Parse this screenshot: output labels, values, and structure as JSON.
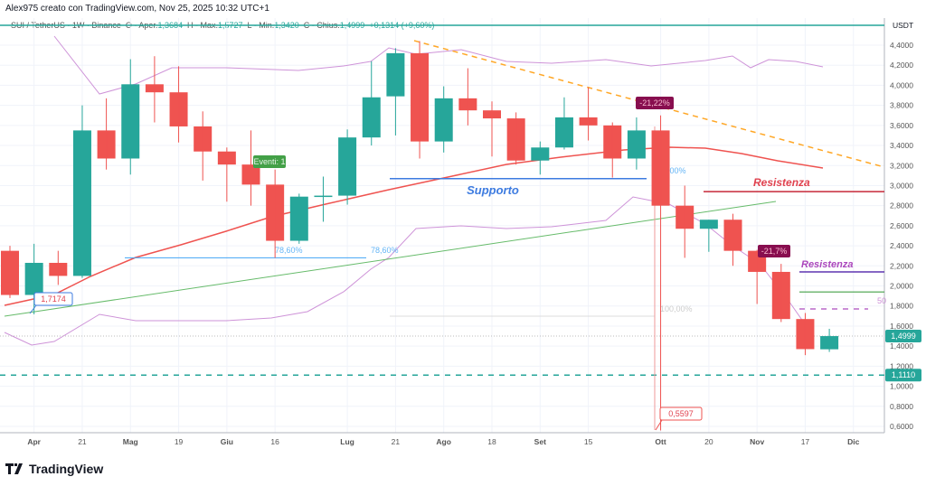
{
  "credit": "Alex975 creato con TradingView.com, Nov 25, 2025 10:32 UTC+1",
  "legend": {
    "symbol": "SUI / TetherUS · 1W · Binance",
    "o_label": "O - Aper.",
    "o": "1,3684",
    "h_label": "H - Max.",
    "h": "1,5727",
    "l_label": "L - Min.",
    "l": "1,3420",
    "c_label": "C - Chius.",
    "c": "1,4999",
    "chg": "+0,1314 (+9,60%)"
  },
  "logo": "TradingView",
  "colors": {
    "up": "#26a69a",
    "down": "#ef5350",
    "ma": "#ef5350",
    "band": "#ce93d8",
    "trend": "#66bb6a",
    "support": "#3d7be0",
    "resist": "#c62839",
    "label": "#880e4f"
  },
  "chart_data": {
    "type": "candlestick",
    "unit": "USDT",
    "ylim": [
      0.5,
      4.6
    ],
    "yticks": [
      "4,4000",
      "4,2000",
      "4,0000",
      "3,8000",
      "3,6000",
      "3,4000",
      "3,2000",
      "3,0000",
      "2,8000",
      "2,6000",
      "2,4000",
      "2,2000",
      "2,0000",
      "1,8000",
      "1,6000",
      "1,4000",
      "1,2000",
      "1,0000",
      "0,8000",
      "0,6000"
    ],
    "ytick_values": [
      4.4,
      4.2,
      4.0,
      3.8,
      3.6,
      3.4,
      3.2,
      3.0,
      2.8,
      2.6,
      2.4,
      2.2,
      2.0,
      1.8,
      1.6,
      1.4,
      1.2,
      1.0,
      0.8,
      0.6
    ],
    "xticks": [
      {
        "label": "Apr",
        "i": 1
      },
      {
        "label": "21",
        "i": 3
      },
      {
        "label": "Mag",
        "i": 5
      },
      {
        "label": "19",
        "i": 7
      },
      {
        "label": "Giu",
        "i": 9
      },
      {
        "label": "16",
        "i": 11
      },
      {
        "label": "Lug",
        "i": 14
      },
      {
        "label": "21",
        "i": 16
      },
      {
        "label": "Ago",
        "i": 18
      },
      {
        "label": "18",
        "i": 20
      },
      {
        "label": "Set",
        "i": 22
      },
      {
        "label": "15",
        "i": 24
      },
      {
        "label": "Ott",
        "i": 27
      },
      {
        "label": "20",
        "i": 29
      },
      {
        "label": "Nov",
        "i": 31
      },
      {
        "label": "17",
        "i": 33
      },
      {
        "label": "Dic",
        "i": 35
      }
    ],
    "ohlc": [
      [
        2.35,
        2.4,
        1.88,
        1.91
      ],
      [
        1.91,
        2.42,
        1.7174,
        2.23
      ],
      [
        2.23,
        2.35,
        2.01,
        2.1
      ],
      [
        2.1,
        3.8,
        2.08,
        3.55
      ],
      [
        3.55,
        3.87,
        3.16,
        3.27
      ],
      [
        3.27,
        4.26,
        3.11,
        4.01
      ],
      [
        4.01,
        4.29,
        3.63,
        3.93
      ],
      [
        3.93,
        4.19,
        3.43,
        3.59
      ],
      [
        3.59,
        3.74,
        3.05,
        3.34
      ],
      [
        3.34,
        3.38,
        2.84,
        3.21
      ],
      [
        3.21,
        3.55,
        2.8,
        3.01
      ],
      [
        3.01,
        3.16,
        2.28,
        2.45
      ],
      [
        2.45,
        2.92,
        2.42,
        2.89
      ],
      [
        2.89,
        3.09,
        2.64,
        2.9
      ],
      [
        2.9,
        3.56,
        2.81,
        3.48
      ],
      [
        3.48,
        4.24,
        3.4,
        3.88
      ],
      [
        3.89,
        4.37,
        3.5,
        4.32
      ],
      [
        4.32,
        4.44,
        3.27,
        3.44
      ],
      [
        3.44,
        3.99,
        3.33,
        3.87
      ],
      [
        3.87,
        4.17,
        3.6,
        3.75
      ],
      [
        3.75,
        3.84,
        3.29,
        3.67
      ],
      [
        3.67,
        3.73,
        3.21,
        3.25
      ],
      [
        3.25,
        3.44,
        3.11,
        3.38
      ],
      [
        3.38,
        3.88,
        3.36,
        3.68
      ],
      [
        3.68,
        3.98,
        3.45,
        3.6
      ],
      [
        3.6,
        3.63,
        3.08,
        3.27
      ],
      [
        3.27,
        3.68,
        3.16,
        3.55
      ],
      [
        3.55,
        3.7,
        0.5597,
        2.8
      ],
      [
        2.8,
        3.0,
        2.28,
        2.57
      ],
      [
        2.57,
        2.66,
        2.34,
        2.66
      ],
      [
        2.66,
        2.72,
        2.2,
        2.35
      ],
      [
        2.35,
        2.36,
        1.82,
        2.14
      ],
      [
        2.14,
        2.22,
        1.64,
        1.67
      ],
      [
        1.67,
        1.73,
        1.31,
        1.37
      ],
      [
        1.3684,
        1.5727,
        1.342,
        1.4999
      ]
    ],
    "price_tags": [
      {
        "text": "1,4999",
        "value": 1.4999
      },
      {
        "text": "1,1110",
        "value": 1.111
      }
    ],
    "annotations": {
      "low_tag": "1,7174",
      "crash_low": "0,5597",
      "drop1": "-21,22%",
      "drop2": "-21,7%",
      "event": "Eventi: 1",
      "support": "Supporto",
      "resist1": "Resistenza",
      "resist2": "Resistenza",
      "fib1": "78,60%",
      "fib2": "78,60%",
      "fib0": "0,00%",
      "fib100": "100,00%",
      "fib50": "50"
    },
    "levels": {
      "resist1": 2.94,
      "resist2": 2.14,
      "green": 1.94,
      "dashed": 1.77,
      "current": 1.4999,
      "support_dash": 1.111,
      "support": 3.07,
      "fib786": 2.28,
      "fib100": 1.72
    },
    "grid": true
  }
}
